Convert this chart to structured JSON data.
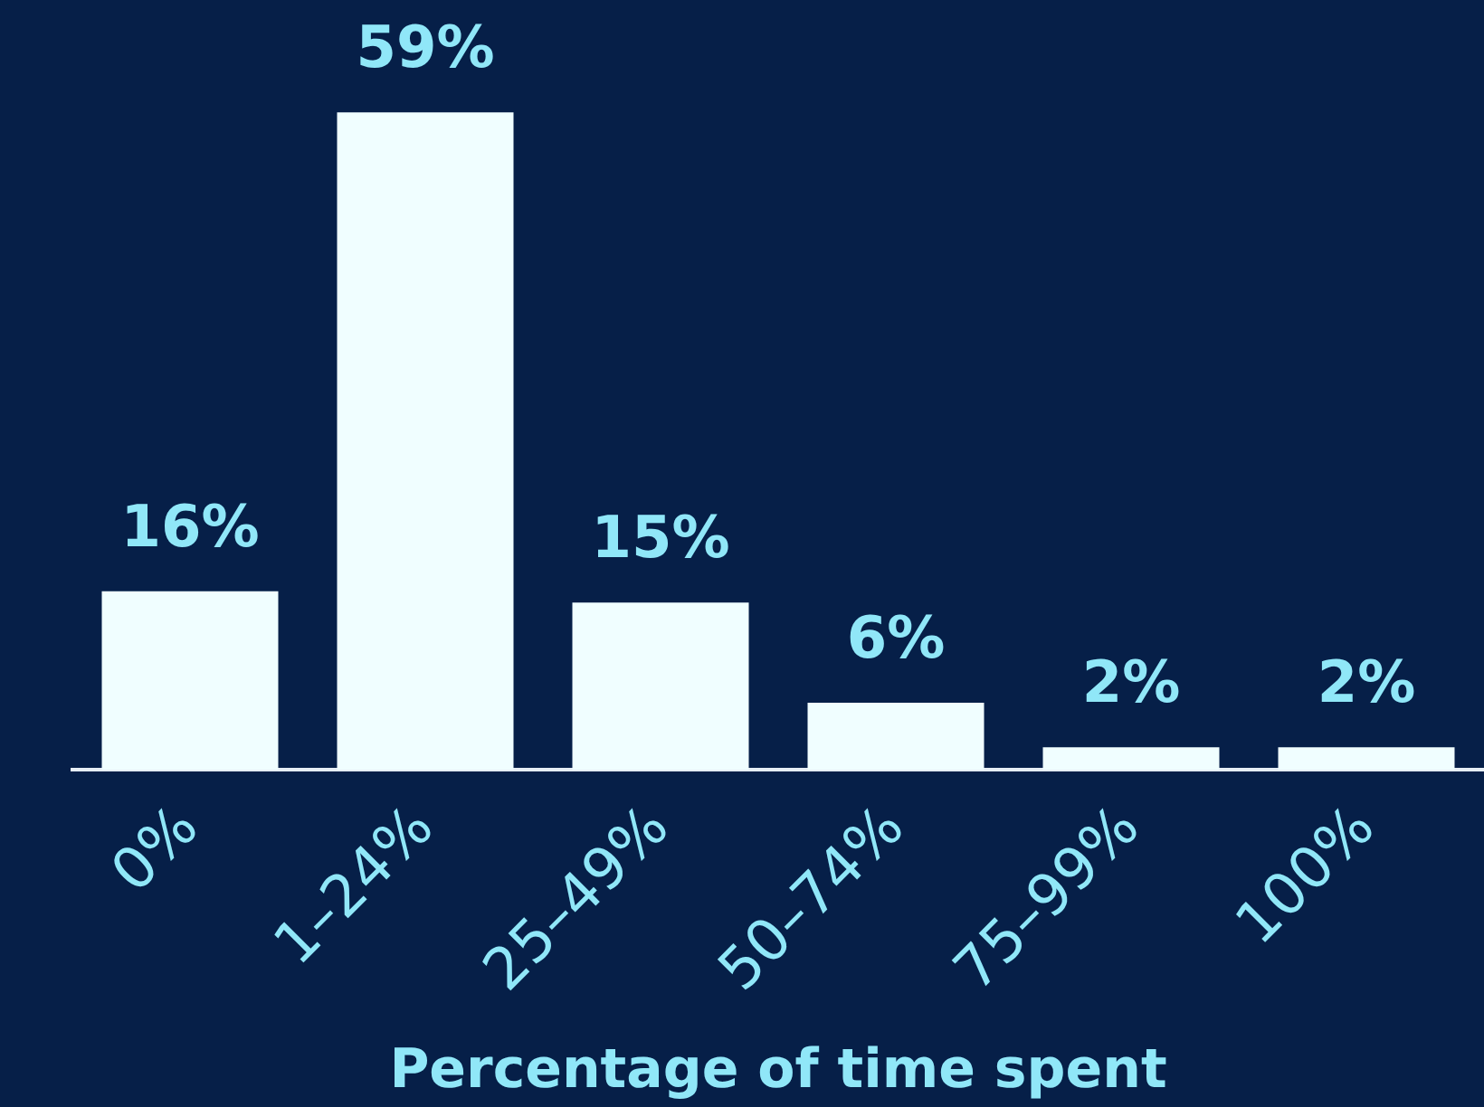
{
  "chart_data": {
    "type": "bar",
    "xlabel": "Percentage of time spent",
    "categories": [
      "0%",
      "1–24%",
      "25–49%",
      "50–74%",
      "75–99%",
      "100%"
    ],
    "values": [
      16,
      59,
      15,
      6,
      2,
      2
    ],
    "value_labels": [
      "16%",
      "59%",
      "15%",
      "6%",
      "2%",
      "2%"
    ],
    "color": "#f0feff",
    "grid": false,
    "legend": false,
    "tick_labels": "x"
  }
}
